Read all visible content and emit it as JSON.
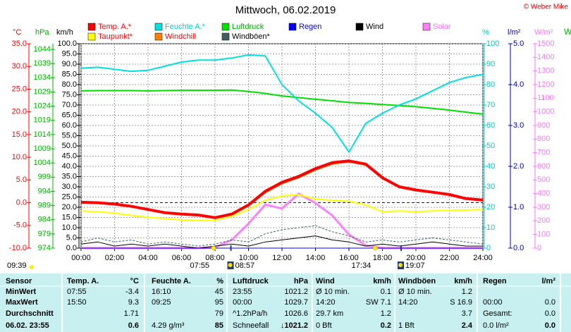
{
  "chart_data": {
    "type": "line",
    "title": "Mittwoch, 06.02.2019",
    "copyright": "© Weber Mike",
    "x": [
      0,
      1,
      2,
      3,
      4,
      5,
      6,
      7,
      8,
      9,
      10,
      11,
      12,
      13,
      14,
      15,
      16,
      17,
      18,
      19,
      20,
      21,
      22,
      23,
      24
    ],
    "xlim": [
      0,
      24
    ],
    "xticks": [
      {
        "value": 0,
        "label": "00:00"
      },
      {
        "value": 2,
        "label": "02:00"
      },
      {
        "value": 4,
        "label": "04:00"
      },
      {
        "value": 6,
        "label": "06:00"
      },
      {
        "value": 8,
        "label": "08:00"
      },
      {
        "value": 10,
        "label": "10:00"
      },
      {
        "value": 12,
        "label": "12:00"
      },
      {
        "value": 14,
        "label": "14:00"
      },
      {
        "value": 16,
        "label": "16:00"
      },
      {
        "value": 18,
        "label": "18:00"
      },
      {
        "value": 20,
        "label": "20:00"
      },
      {
        "value": 22,
        "label": "22:00"
      },
      {
        "value": 24,
        "label": "24:00"
      }
    ],
    "grid": true,
    "zero_line_color": "#0000c0",
    "axes": {
      "temp": {
        "label": "°C",
        "color": "#ff0000",
        "lim": [
          -10,
          35
        ],
        "ticks": [
          {
            "value": -10,
            "label": "-10.0"
          },
          {
            "value": -5,
            "label": "-5.0"
          },
          {
            "value": 0,
            "label": "0.0"
          },
          {
            "value": 5,
            "label": "5.0"
          },
          {
            "value": 10,
            "label": "10.0"
          },
          {
            "value": 15,
            "label": "15.0"
          },
          {
            "value": 20,
            "label": "20.0"
          },
          {
            "value": 25,
            "label": "25.0"
          },
          {
            "value": 30,
            "label": "30.0"
          },
          {
            "value": 35,
            "label": "35.0"
          }
        ]
      },
      "hpa": {
        "label": "hPa",
        "color": "#00b000",
        "lim": [
          974,
          1046
        ],
        "ticks": [
          974,
          979,
          984,
          989,
          994,
          999,
          1004,
          1009,
          1014,
          1019,
          1024,
          1029,
          1034,
          1039,
          1044
        ]
      },
      "kmh": {
        "label": "km/h",
        "color": "#000000",
        "lim": [
          0,
          100
        ],
        "ticks": [
          {
            "value": 0,
            "label": "0.0"
          },
          {
            "value": 5,
            "label": "5.0"
          },
          {
            "value": 10,
            "label": "10.0"
          },
          {
            "value": 15,
            "label": "15.0"
          },
          {
            "value": 20,
            "label": "20.0"
          },
          {
            "value": 25,
            "label": "25.0"
          },
          {
            "value": 30,
            "label": "30.0"
          },
          {
            "value": 35,
            "label": "35.0"
          },
          {
            "value": 40,
            "label": "40.0"
          },
          {
            "value": 45,
            "label": "45.0"
          },
          {
            "value": 50,
            "label": "50.0"
          },
          {
            "value": 55,
            "label": "55.0"
          },
          {
            "value": 60,
            "label": "60.0"
          },
          {
            "value": 65,
            "label": "65.0"
          },
          {
            "value": 70,
            "label": "70.0"
          },
          {
            "value": 75,
            "label": "75.0"
          },
          {
            "value": 80,
            "label": "80.0"
          },
          {
            "value": 85,
            "label": "85.0"
          },
          {
            "value": 90,
            "label": "90.0"
          },
          {
            "value": 95,
            "label": "95.0"
          },
          {
            "value": 100,
            "label": "100.0"
          }
        ]
      },
      "pct": {
        "label": "%",
        "color": "#00c8c8",
        "lim": [
          0,
          100
        ],
        "ticks": [
          0,
          10,
          20,
          30,
          40,
          50,
          60,
          70,
          80,
          90,
          100
        ]
      },
      "lm2": {
        "label": "l/m²",
        "color": "#0000c0",
        "lim": [
          0,
          5
        ],
        "ticks": [
          {
            "value": 0,
            "label": "0.0"
          },
          {
            "value": 1,
            "label": "1.0"
          },
          {
            "value": 2,
            "label": "2.0"
          },
          {
            "value": 3,
            "label": "3.0"
          },
          {
            "value": 4,
            "label": "4.0"
          },
          {
            "value": 5,
            "label": "5.0"
          }
        ]
      },
      "wm2": {
        "label": "W/m²",
        "color": "#ff70ff",
        "lim": [
          0,
          1500
        ],
        "ticks": [
          0,
          100,
          200,
          300,
          400,
          500,
          600,
          700,
          800,
          900,
          1000,
          1100,
          1200,
          1300,
          1400,
          1500
        ]
      }
    },
    "series": [
      {
        "name": "Temp. A.*",
        "axis": "temp",
        "color": "#ff0000",
        "legend_text_color": "#ff0000",
        "width": 4,
        "values": [
          0.1,
          0,
          -0.3,
          -0.8,
          -1.5,
          -2.2,
          -2.5,
          -2.7,
          -3.3,
          -2.5,
          -0.5,
          2.5,
          4.5,
          5.8,
          7.5,
          8.8,
          9.2,
          8.5,
          5.5,
          3.5,
          2.8,
          2.3,
          1.8,
          0.9,
          0.6
        ]
      },
      {
        "name": "Feuchte A.*",
        "axis": "pct",
        "color": "#00e0e0",
        "legend_text_color": "#00d0d0",
        "width": 2,
        "values": [
          88,
          88.5,
          87.5,
          86.5,
          87,
          89,
          91,
          92,
          92,
          93,
          94.5,
          94,
          80,
          72,
          66,
          59,
          47,
          61,
          66,
          70,
          73,
          77,
          81,
          83.5,
          85
        ]
      },
      {
        "name": "Luftdruck",
        "axis": "hpa",
        "color": "#00e000",
        "legend_text_color": "#00b000",
        "width": 2,
        "values": [
          1029.4,
          1029.5,
          1029.5,
          1029.5,
          1029.4,
          1029.5,
          1029.6,
          1029.6,
          1029.6,
          1029.7,
          1029.2,
          1028.5,
          1027.6,
          1027,
          1026.4,
          1025.9,
          1025.3,
          1025,
          1024.6,
          1024.2,
          1023.8,
          1023.2,
          1022.6,
          1021.9,
          1021.2
        ]
      },
      {
        "name": "Regen",
        "axis": "lm2",
        "color": "#0000ff",
        "legend_text_color": "#0000ff",
        "width": 1,
        "values": [
          0,
          0,
          0,
          0,
          0,
          0,
          0,
          0,
          0,
          0,
          0,
          0,
          0,
          0,
          0,
          0,
          0,
          0,
          0,
          0,
          0,
          0,
          0,
          0,
          0
        ]
      },
      {
        "name": "Wind",
        "axis": "kmh",
        "color": "#000000",
        "legend_text_color": "#000000",
        "width": 1,
        "values": [
          2,
          3,
          1,
          2,
          1,
          2,
          1,
          0,
          1,
          2,
          1,
          3,
          4,
          5,
          6,
          4,
          3,
          1,
          2,
          1,
          2,
          3,
          2,
          1,
          1
        ]
      },
      {
        "name": "Solar",
        "axis": "wm2",
        "color": "#ff80ff",
        "legend_text_color": "#ff70ff",
        "width": 3,
        "values": [
          0,
          0,
          0,
          0,
          0,
          0,
          0,
          0,
          5,
          60,
          180,
          320,
          290,
          400,
          330,
          240,
          100,
          20,
          0,
          0,
          0,
          0,
          0,
          0,
          0
        ]
      },
      {
        "name": "Taupunkt*",
        "axis": "temp",
        "color": "#ffff00",
        "legend_text_color": "#ff0000",
        "width": 2,
        "values": [
          -1.8,
          -2,
          -2.3,
          -2.8,
          -3.2,
          -3.5,
          -3.8,
          -3.9,
          -3.9,
          -3,
          -1.5,
          0.5,
          1.5,
          1.8,
          0.8,
          0.5,
          0.3,
          -0.5,
          -2,
          -1.8,
          -2,
          -1.8,
          -1.7,
          -1.6,
          -1.5
        ]
      },
      {
        "name": "Windchill",
        "axis": "temp",
        "color": "#ff8000",
        "legend_text_color": "#ff0000",
        "width": 2,
        "values": [
          0,
          -0.1,
          -0.4,
          -0.9,
          -1.6,
          -2.3,
          -2.6,
          -2.8,
          -3.4,
          -2.6,
          -0.7,
          2.2,
          4.2,
          5.5,
          7.2,
          8.5,
          9,
          8.3,
          5.3,
          3.4,
          2.7,
          2.2,
          1.7,
          0.8,
          0.5
        ]
      },
      {
        "name": "Windböen*",
        "axis": "kmh",
        "color": "#406060",
        "legend_text_color": "#000000",
        "width": 1,
        "values": [
          3,
          5,
          3,
          4,
          2,
          3,
          2,
          1,
          2,
          4,
          3,
          7,
          9,
          10,
          11,
          8,
          6,
          3,
          4,
          3,
          4,
          5,
          4,
          3,
          2
        ]
      }
    ],
    "astro": [
      {
        "time": "07:55",
        "kind": "sun"
      },
      {
        "time": "08:57",
        "kind": "moon"
      },
      {
        "time": "17:34",
        "kind": "sun"
      },
      {
        "time": "19:07",
        "kind": "moon"
      }
    ],
    "left_time": "09:39",
    "cut_label": "W"
  },
  "table": {
    "header": [
      "Sensor",
      "Temp. A.",
      "°C",
      "Feuchte A.",
      "%",
      "Luftdruck",
      "hPa",
      "Wind",
      "km/h",
      "Windböen",
      "km/h",
      "Regen",
      "l/m²"
    ],
    "rows": [
      [
        "MinWert",
        "07:55",
        "-3.4",
        "16:10",
        "45",
        "23:55",
        "1021.2",
        "Ø 10 min.",
        "0.1",
        "Ø 10 min.",
        "1.2",
        null,
        null
      ],
      [
        "MaxWert",
        "15:50",
        "9.3",
        "09:25",
        "95",
        "00:00",
        "1029.7",
        "14:20",
        "SW 7.1",
        "14:20",
        "S 16.9",
        "00:00",
        "0.0"
      ],
      [
        "Durchschnitt",
        null,
        "1.71",
        null,
        "79",
        "^1.2hPa/h",
        "1026.6",
        "29.7 km",
        "1.2",
        null,
        "3.7",
        "Gesamt:",
        "0.0"
      ],
      [
        "06.02. 23:55",
        null,
        "0.6",
        "4.29 g/m³",
        "85",
        "Schneefall",
        "↓1021.2",
        "0 Bft",
        "0.2",
        "1 Bft",
        "2.4",
        "0.0 l/m²",
        "0.0"
      ]
    ]
  }
}
